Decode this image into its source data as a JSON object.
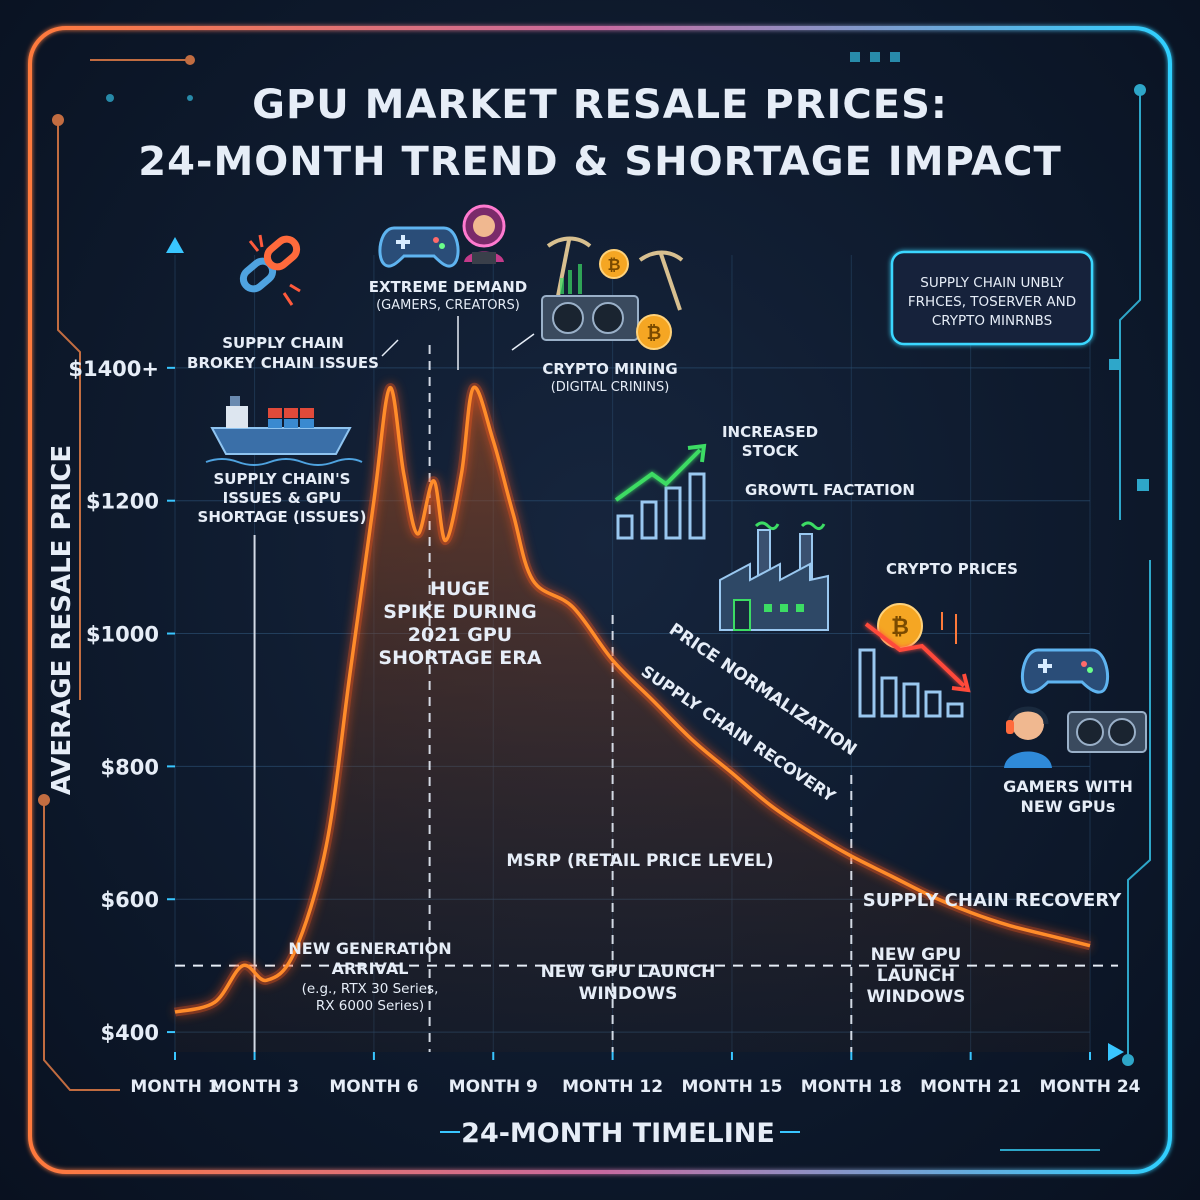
{
  "title": {
    "line1": "GPU MARKET RESALE PRICES:",
    "line2": "24-MONTH TREND & SHORTAGE IMPACT"
  },
  "chart_data": {
    "type": "line",
    "title": "GPU MARKET RESALE PRICES: 24-MONTH TREND & SHORTAGE IMPACT",
    "xlabel": "24-MONTH TIMELINE",
    "ylabel": "AVERAGE RESALE PRICE",
    "x_ticks": [
      "MONTH 1",
      "MONTH 3",
      "MONTH 6",
      "MONTH 9",
      "MONTH 12",
      "MONTH 15",
      "MONTH 18",
      "MONTH 21",
      "MONTH 24"
    ],
    "x_tick_values": [
      1,
      3,
      6,
      9,
      12,
      15,
      18,
      21,
      24
    ],
    "y_ticks": [
      "$400",
      "$600",
      "$800",
      "$1000",
      "$1200",
      "$1400+"
    ],
    "y_tick_values": [
      400,
      600,
      800,
      1000,
      1200,
      1400
    ],
    "xlim": [
      1,
      24
    ],
    "ylim": [
      370,
      1600
    ],
    "grid": true,
    "series": [
      {
        "name": "",
        "points": [
          [
            1,
            430
          ],
          [
            2,
            445
          ],
          [
            2.7,
            500
          ],
          [
            3.3,
            478
          ],
          [
            4,
            520
          ],
          [
            4.8,
            680
          ],
          [
            5.4,
            940
          ],
          [
            6,
            1200
          ],
          [
            6.4,
            1370
          ],
          [
            6.75,
            1240
          ],
          [
            7.1,
            1150
          ],
          [
            7.5,
            1230
          ],
          [
            7.8,
            1140
          ],
          [
            8.2,
            1240
          ],
          [
            8.5,
            1370
          ],
          [
            9,
            1290
          ],
          [
            9.5,
            1180
          ],
          [
            10,
            1080
          ],
          [
            11,
            1040
          ],
          [
            12,
            960
          ],
          [
            13,
            900
          ],
          [
            14,
            840
          ],
          [
            15,
            790
          ],
          [
            16,
            740
          ],
          [
            17,
            700
          ],
          [
            18,
            665
          ],
          [
            19,
            635
          ],
          [
            20,
            605
          ],
          [
            21,
            580
          ],
          [
            22,
            560
          ],
          [
            23,
            545
          ],
          [
            24,
            530
          ]
        ]
      }
    ],
    "reference_line": {
      "label": "MSRP (RETAIL PRICE LEVEL)",
      "value": 500
    },
    "annotations": {
      "supply_chain_issues": [
        "SUPPLY CHAIN",
        "BROKEY CHAIN ISSUES"
      ],
      "extreme_demand": [
        "EXTREME DEMAND",
        "(GAMERS, CREATORS)"
      ],
      "crypto_mining": [
        "CRYPTO MINING",
        "(DIGITAL CRININS)"
      ],
      "shortage": [
        "SUPPLY CHAIN'S",
        "ISSUES & GPU",
        "SHORTAGE (ISSUES)"
      ],
      "spike": [
        "HUGE",
        "SPIKE DURING",
        "2021 GPU",
        "SHORTAGE ERA"
      ],
      "increased_stock": [
        "INCREASED",
        "STOCK"
      ],
      "growth": "GROWTL FACTATION",
      "crypto_prices": "CRYPTO PRICES",
      "price_normalization": "PRICE NORMALIZATION",
      "supply_recovery_curve": "SUPPLY CHAIN RECOVERY",
      "gamers_new": [
        "GAMERS WITH",
        "NEW GPUs"
      ],
      "supply_recovery_right": "SUPPLY CHAIN RECOVERY",
      "new_generation": [
        "NEW GENERATION",
        "ARRIVAL",
        "(e.g., RTX 30 Series,",
        "RX 6000 Series)"
      ],
      "launch_windows_mid": [
        "NEW GPU LAUNCH",
        "WINDOWS"
      ],
      "launch_windows_right": [
        "NEW GPU",
        "LAUNCH",
        "WINDOWS"
      ],
      "callout_box": [
        "SUPPLY CHAIN UNBLY",
        "FRHCES, TOSERVER AND",
        "CRYPTO MINRNBS"
      ]
    }
  },
  "colors": {
    "line": "#ff8c2a",
    "line_glow": "#ff5a1a",
    "axis": "#39c6ff",
    "frame_left": "#ff7a3c",
    "frame_right": "#2fd0ff",
    "grid": "#2a4c6e",
    "green": "#3cdc64",
    "cyan": "#3ad7ff"
  },
  "icons": [
    "broken-chain-icon",
    "gamepad-icon",
    "streamer-icon",
    "pickaxe-icon",
    "bitcoin-icon",
    "gpu-card-icon",
    "cargo-ship-icon",
    "bar-chart-up-icon",
    "factory-icon",
    "bitcoin-down-chart-icon",
    "gamer-headset-icon",
    "gpu-card-icon"
  ]
}
